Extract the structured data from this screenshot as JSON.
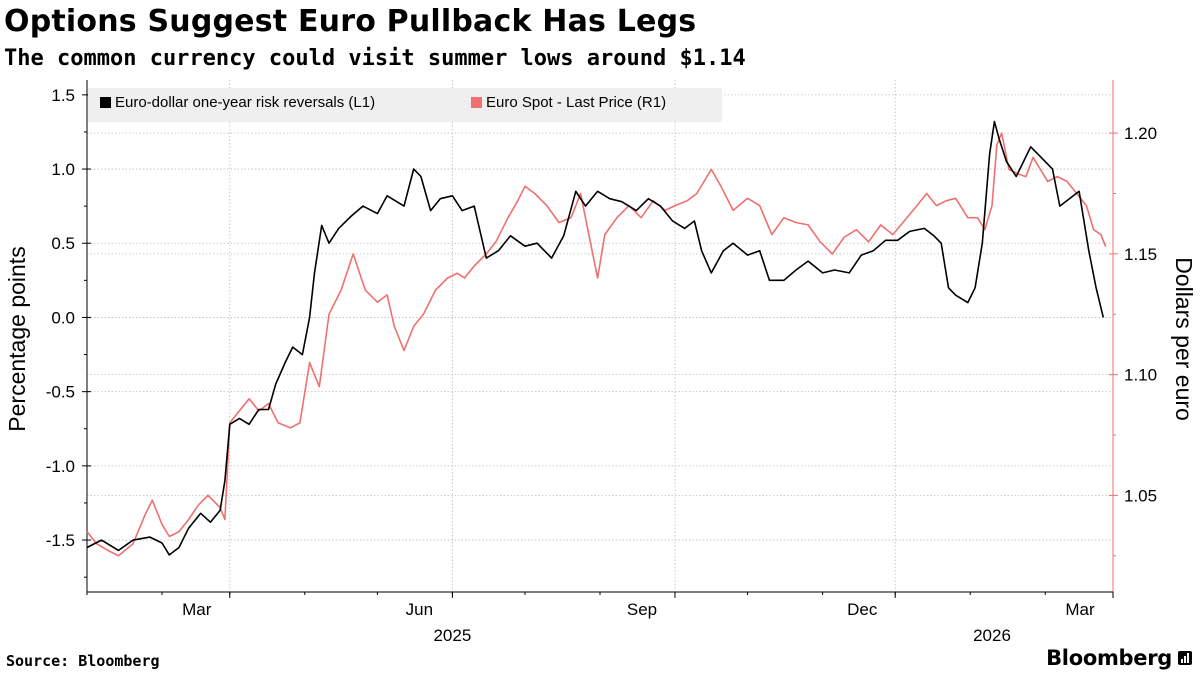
{
  "header": {
    "title": "Options Suggest Euro Pullback Has Legs",
    "subtitle": "The common currency could visit summer lows around $1.14"
  },
  "footer": {
    "source": "Source: Bloomberg",
    "brand": "Bloomberg"
  },
  "colors": {
    "series_l1": "#000000",
    "series_r1": "#f07070",
    "grid": "#bdbdbd",
    "legend_bg": "#efefef"
  },
  "chart_data": {
    "type": "line",
    "title": "Options Suggest Euro Pullback Has Legs",
    "subtitle": "The common currency could visit summer lows around $1.14",
    "xlabel": "",
    "x_range": [
      "2025-01-01",
      "2026-03-01"
    ],
    "x_ticks": [
      {
        "date": "2025-03-01",
        "label": "Mar"
      },
      {
        "date": "2025-06-01",
        "label": "Jun"
      },
      {
        "date": "2025-09-01",
        "label": "Sep"
      },
      {
        "date": "2025-12-01",
        "label": "Dec"
      },
      {
        "date": "2026-03-01",
        "label": "Mar"
      }
    ],
    "year_labels": [
      {
        "date": "2025-06-01",
        "label": "2025"
      },
      {
        "date": "2026-01-10",
        "label": "2026"
      }
    ],
    "y_left": {
      "label": "Percentage points",
      "lim": [
        -1.85,
        1.6
      ],
      "ticks": [
        1.5,
        1.0,
        0.5,
        0.0,
        -0.5,
        -1.0,
        -1.5
      ],
      "tick_labels": [
        "1.5",
        "1.0",
        "0.5",
        "0.0",
        "-0.5",
        "-1.0",
        "-1.5"
      ]
    },
    "y_right": {
      "label": "Dollars per euro",
      "lim": [
        1.01,
        1.222
      ],
      "ticks": [
        1.2,
        1.15,
        1.1,
        1.05
      ],
      "tick_labels": [
        "1.20",
        "1.15",
        "1.10",
        "1.05"
      ]
    },
    "legend": {
      "position": "top-left",
      "entries": [
        "Euro-dollar one-year risk reversals (L1)",
        "Euro Spot - Last Price (R1)"
      ]
    },
    "series": [
      {
        "name": "Euro-dollar one-year risk reversals (L1)",
        "axis": "left",
        "points": [
          [
            "2025-01-01",
            -1.55
          ],
          [
            "2025-01-07",
            -1.5
          ],
          [
            "2025-01-14",
            -1.57
          ],
          [
            "2025-01-20",
            -1.5
          ],
          [
            "2025-01-27",
            -1.48
          ],
          [
            "2025-02-01",
            -1.52
          ],
          [
            "2025-02-04",
            -1.6
          ],
          [
            "2025-02-08",
            -1.55
          ],
          [
            "2025-02-12",
            -1.42
          ],
          [
            "2025-02-17",
            -1.32
          ],
          [
            "2025-02-21",
            -1.38
          ],
          [
            "2025-02-25",
            -1.3
          ],
          [
            "2025-02-27",
            -1.1
          ],
          [
            "2025-03-01",
            -0.72
          ],
          [
            "2025-03-05",
            -0.68
          ],
          [
            "2025-03-09",
            -0.72
          ],
          [
            "2025-03-13",
            -0.62
          ],
          [
            "2025-03-17",
            -0.62
          ],
          [
            "2025-03-20",
            -0.45
          ],
          [
            "2025-03-24",
            -0.3
          ],
          [
            "2025-03-27",
            -0.2
          ],
          [
            "2025-03-31",
            -0.25
          ],
          [
            "2025-04-03",
            0.0
          ],
          [
            "2025-04-05",
            0.3
          ],
          [
            "2025-04-08",
            0.62
          ],
          [
            "2025-04-11",
            0.5
          ],
          [
            "2025-04-15",
            0.6
          ],
          [
            "2025-04-20",
            0.68
          ],
          [
            "2025-04-25",
            0.75
          ],
          [
            "2025-05-01",
            0.7
          ],
          [
            "2025-05-05",
            0.82
          ],
          [
            "2025-05-12",
            0.75
          ],
          [
            "2025-05-16",
            1.0
          ],
          [
            "2025-05-19",
            0.95
          ],
          [
            "2025-05-23",
            0.72
          ],
          [
            "2025-05-27",
            0.8
          ],
          [
            "2025-06-01",
            0.82
          ],
          [
            "2025-06-05",
            0.72
          ],
          [
            "2025-06-10",
            0.75
          ],
          [
            "2025-06-15",
            0.4
          ],
          [
            "2025-06-20",
            0.45
          ],
          [
            "2025-06-25",
            0.55
          ],
          [
            "2025-07-01",
            0.48
          ],
          [
            "2025-07-06",
            0.5
          ],
          [
            "2025-07-12",
            0.4
          ],
          [
            "2025-07-17",
            0.55
          ],
          [
            "2025-07-22",
            0.85
          ],
          [
            "2025-07-26",
            0.75
          ],
          [
            "2025-07-31",
            0.85
          ],
          [
            "2025-08-05",
            0.8
          ],
          [
            "2025-08-10",
            0.78
          ],
          [
            "2025-08-16",
            0.72
          ],
          [
            "2025-08-21",
            0.8
          ],
          [
            "2025-08-26",
            0.75
          ],
          [
            "2025-08-31",
            0.65
          ],
          [
            "2025-09-05",
            0.6
          ],
          [
            "2025-09-09",
            0.65
          ],
          [
            "2025-09-12",
            0.45
          ],
          [
            "2025-09-16",
            0.3
          ],
          [
            "2025-09-21",
            0.45
          ],
          [
            "2025-09-25",
            0.5
          ],
          [
            "2025-10-01",
            0.42
          ],
          [
            "2025-10-06",
            0.45
          ],
          [
            "2025-10-10",
            0.25
          ],
          [
            "2025-10-16",
            0.25
          ],
          [
            "2025-10-21",
            0.32
          ],
          [
            "2025-10-26",
            0.38
          ],
          [
            "2025-11-01",
            0.3
          ],
          [
            "2025-11-06",
            0.32
          ],
          [
            "2025-11-12",
            0.3
          ],
          [
            "2025-11-17",
            0.42
          ],
          [
            "2025-11-22",
            0.45
          ],
          [
            "2025-11-27",
            0.52
          ],
          [
            "2025-12-02",
            0.52
          ],
          [
            "2025-12-07",
            0.58
          ],
          [
            "2025-12-13",
            0.6
          ],
          [
            "2025-12-17",
            0.55
          ],
          [
            "2025-12-20",
            0.5
          ],
          [
            "2025-12-23",
            0.2
          ],
          [
            "2025-12-26",
            0.15
          ],
          [
            "2025-12-31",
            0.1
          ],
          [
            "2026-01-03",
            0.2
          ],
          [
            "2026-01-06",
            0.5
          ],
          [
            "2026-01-09",
            1.1
          ],
          [
            "2026-01-11",
            1.32
          ],
          [
            "2026-01-13",
            1.2
          ],
          [
            "2026-01-16",
            1.05
          ],
          [
            "2026-01-20",
            0.95
          ],
          [
            "2026-01-23",
            1.05
          ],
          [
            "2026-01-26",
            1.15
          ],
          [
            "2026-01-29",
            1.1
          ],
          [
            "2026-02-01",
            1.05
          ],
          [
            "2026-02-04",
            1.0
          ],
          [
            "2026-02-07",
            0.75
          ],
          [
            "2026-02-11",
            0.8
          ],
          [
            "2026-02-15",
            0.85
          ],
          [
            "2026-02-19",
            0.45
          ],
          [
            "2026-02-22",
            0.2
          ],
          [
            "2026-02-25",
            0.0
          ]
        ]
      },
      {
        "name": "Euro Spot - Last Price (R1)",
        "axis": "right",
        "points": [
          [
            "2025-01-01",
            1.035
          ],
          [
            "2025-01-05",
            1.03
          ],
          [
            "2025-01-10",
            1.027
          ],
          [
            "2025-01-14",
            1.025
          ],
          [
            "2025-01-20",
            1.03
          ],
          [
            "2025-01-25",
            1.042
          ],
          [
            "2025-01-28",
            1.048
          ],
          [
            "2025-02-01",
            1.038
          ],
          [
            "2025-02-04",
            1.033
          ],
          [
            "2025-02-08",
            1.035
          ],
          [
            "2025-02-12",
            1.04
          ],
          [
            "2025-02-16",
            1.046
          ],
          [
            "2025-02-20",
            1.05
          ],
          [
            "2025-02-25",
            1.045
          ],
          [
            "2025-02-27",
            1.04
          ],
          [
            "2025-03-01",
            1.08
          ],
          [
            "2025-03-05",
            1.085
          ],
          [
            "2025-03-09",
            1.09
          ],
          [
            "2025-03-13",
            1.085
          ],
          [
            "2025-03-17",
            1.088
          ],
          [
            "2025-03-21",
            1.08
          ],
          [
            "2025-03-26",
            1.078
          ],
          [
            "2025-03-30",
            1.08
          ],
          [
            "2025-04-03",
            1.105
          ],
          [
            "2025-04-07",
            1.095
          ],
          [
            "2025-04-11",
            1.125
          ],
          [
            "2025-04-16",
            1.135
          ],
          [
            "2025-04-21",
            1.15
          ],
          [
            "2025-04-26",
            1.135
          ],
          [
            "2025-05-01",
            1.13
          ],
          [
            "2025-05-05",
            1.133
          ],
          [
            "2025-05-08",
            1.12
          ],
          [
            "2025-05-12",
            1.11
          ],
          [
            "2025-05-16",
            1.12
          ],
          [
            "2025-05-20",
            1.125
          ],
          [
            "2025-05-25",
            1.135
          ],
          [
            "2025-05-30",
            1.14
          ],
          [
            "2025-06-03",
            1.142
          ],
          [
            "2025-06-06",
            1.14
          ],
          [
            "2025-06-10",
            1.145
          ],
          [
            "2025-06-15",
            1.15
          ],
          [
            "2025-06-19",
            1.155
          ],
          [
            "2025-06-24",
            1.165
          ],
          [
            "2025-06-28",
            1.172
          ],
          [
            "2025-07-01",
            1.178
          ],
          [
            "2025-07-05",
            1.175
          ],
          [
            "2025-07-10",
            1.17
          ],
          [
            "2025-07-15",
            1.163
          ],
          [
            "2025-07-20",
            1.165
          ],
          [
            "2025-07-24",
            1.175
          ],
          [
            "2025-07-28",
            1.155
          ],
          [
            "2025-07-31",
            1.14
          ],
          [
            "2025-08-03",
            1.158
          ],
          [
            "2025-08-08",
            1.165
          ],
          [
            "2025-08-13",
            1.17
          ],
          [
            "2025-08-18",
            1.165
          ],
          [
            "2025-08-23",
            1.172
          ],
          [
            "2025-08-28",
            1.168
          ],
          [
            "2025-09-01",
            1.17
          ],
          [
            "2025-09-06",
            1.172
          ],
          [
            "2025-09-10",
            1.175
          ],
          [
            "2025-09-16",
            1.185
          ],
          [
            "2025-09-20",
            1.178
          ],
          [
            "2025-09-25",
            1.168
          ],
          [
            "2025-10-01",
            1.173
          ],
          [
            "2025-10-06",
            1.17
          ],
          [
            "2025-10-11",
            1.158
          ],
          [
            "2025-10-16",
            1.165
          ],
          [
            "2025-10-21",
            1.163
          ],
          [
            "2025-10-26",
            1.162
          ],
          [
            "2025-10-31",
            1.155
          ],
          [
            "2025-11-05",
            1.15
          ],
          [
            "2025-11-10",
            1.157
          ],
          [
            "2025-11-15",
            1.16
          ],
          [
            "2025-11-20",
            1.155
          ],
          [
            "2025-11-25",
            1.162
          ],
          [
            "2025-11-30",
            1.158
          ],
          [
            "2025-12-05",
            1.164
          ],
          [
            "2025-12-10",
            1.17
          ],
          [
            "2025-12-14",
            1.175
          ],
          [
            "2025-12-18",
            1.17
          ],
          [
            "2025-12-22",
            1.172
          ],
          [
            "2025-12-26",
            1.173
          ],
          [
            "2025-12-31",
            1.165
          ],
          [
            "2026-01-04",
            1.165
          ],
          [
            "2026-01-07",
            1.16
          ],
          [
            "2026-01-10",
            1.17
          ],
          [
            "2026-01-12",
            1.195
          ],
          [
            "2026-01-14",
            1.2
          ],
          [
            "2026-01-17",
            1.185
          ],
          [
            "2026-01-21",
            1.183
          ],
          [
            "2026-01-24",
            1.182
          ],
          [
            "2026-01-27",
            1.19
          ],
          [
            "2026-01-30",
            1.185
          ],
          [
            "2026-02-02",
            1.18
          ],
          [
            "2026-02-06",
            1.182
          ],
          [
            "2026-02-10",
            1.18
          ],
          [
            "2026-02-14",
            1.175
          ],
          [
            "2026-02-18",
            1.17
          ],
          [
            "2026-02-21",
            1.16
          ],
          [
            "2026-02-24",
            1.158
          ],
          [
            "2026-02-26",
            1.153
          ]
        ]
      }
    ]
  }
}
